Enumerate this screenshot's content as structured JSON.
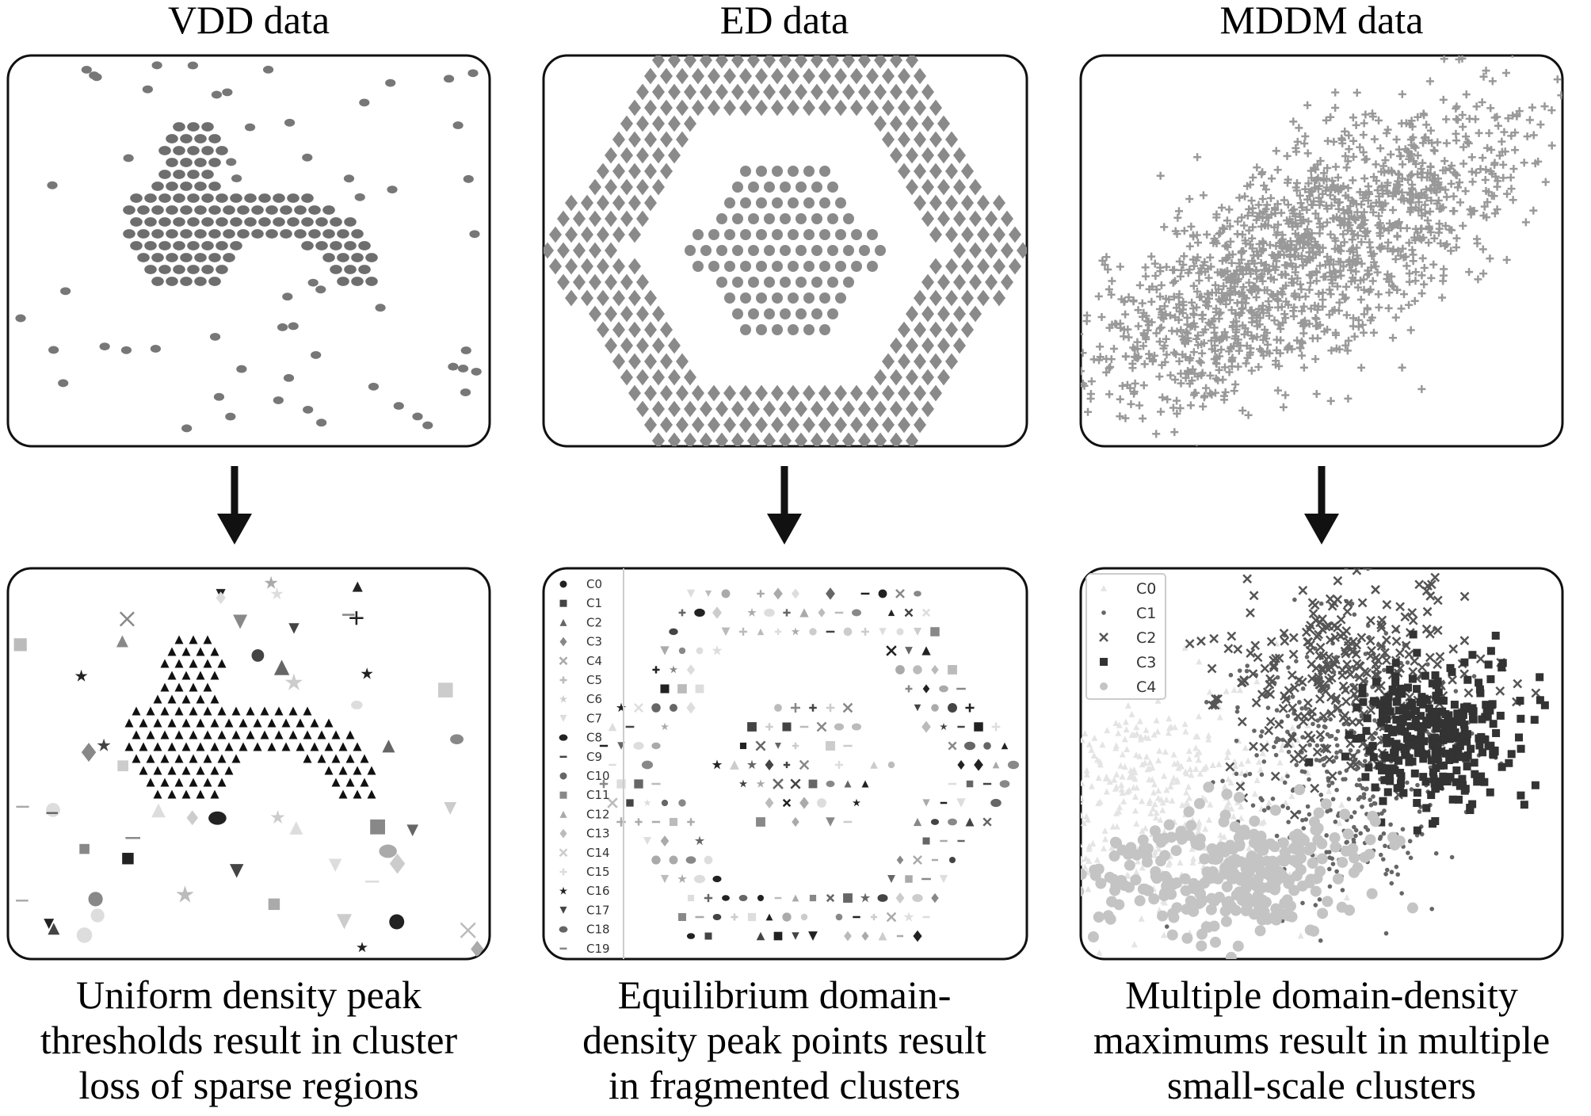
{
  "panels": [
    {
      "title": "VDD data",
      "caption": [
        "Uniform density peak",
        "thresholds result in cluster",
        "loss of sparse regions"
      ]
    },
    {
      "title": "ED data",
      "caption": [
        "Equilibrium domain-",
        "density peak points result",
        "in fragmented clusters"
      ],
      "legend": [
        "C0",
        "C1",
        "C2",
        "C3",
        "C4",
        "C5",
        "C6",
        "C7",
        "C8",
        "C9",
        "C10",
        "C11",
        "C12",
        "C13",
        "C14",
        "C15",
        "C16",
        "C17",
        "C18",
        "C19"
      ]
    },
    {
      "title": "MDDM data",
      "caption": [
        "Multiple  domain-density",
        "maximums result in multiple",
        "small-scale clusters"
      ],
      "legend": [
        "C0",
        "C1",
        "C2",
        "C3",
        "C4"
      ]
    }
  ]
}
